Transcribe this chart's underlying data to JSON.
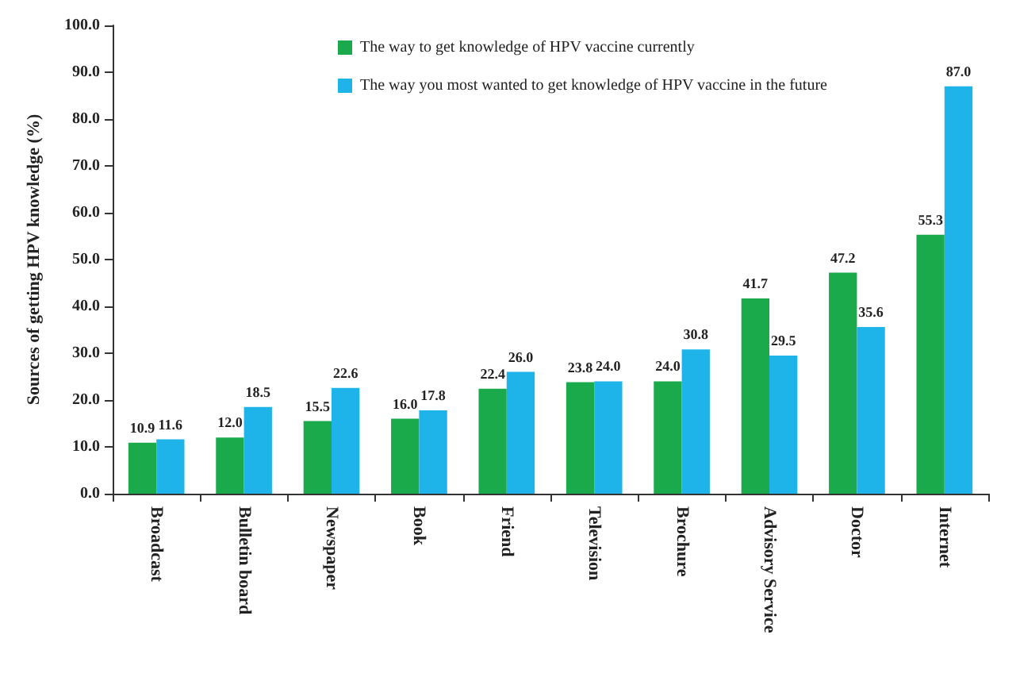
{
  "chart_data": {
    "type": "bar",
    "ylabel": "Sources of getting HPV knowledge (%)",
    "categories": [
      "Broadcast",
      "Bulletin board",
      "Newspaper",
      "Book",
      "Friend",
      "Television",
      "Brochure",
      "Advisory Service",
      "Doctor",
      "Internet"
    ],
    "series": [
      {
        "name": "The way to get knowledge of HPV vaccine currently",
        "color": "#1aaa4c",
        "values": [
          10.9,
          12.0,
          15.5,
          16.0,
          22.4,
          23.8,
          24.0,
          41.7,
          47.2,
          55.3
        ],
        "value_labels": [
          "10.9",
          "12.0",
          "15.5",
          "16.0",
          "22.4",
          "23.8",
          "24.0",
          "41.7",
          "47.2",
          "55.3"
        ]
      },
      {
        "name": "The way you most wanted to get knowledge of HPV vaccine in the future",
        "color": "#1eb4ea",
        "values": [
          11.6,
          18.5,
          22.6,
          17.8,
          26.0,
          24.0,
          30.8,
          29.5,
          35.6,
          87.0
        ],
        "value_labels": [
          "11.6",
          "18.5",
          "22.6",
          "17.8",
          "26.0",
          "24.0",
          "30.8",
          "29.5",
          "35.6",
          "87.0"
        ]
      }
    ],
    "ylim": [
      0,
      100
    ],
    "yticks": [
      {
        "value": 0,
        "label": "0.0"
      },
      {
        "value": 10,
        "label": "10.0"
      },
      {
        "value": 20,
        "label": "20.0"
      },
      {
        "value": 30,
        "label": "30.0"
      },
      {
        "value": 40,
        "label": "40.0"
      },
      {
        "value": 50,
        "label": "50.0"
      },
      {
        "value": 60,
        "label": "60.0"
      },
      {
        "value": 70,
        "label": "70.0"
      },
      {
        "value": 80,
        "label": "80.0"
      },
      {
        "value": 90,
        "label": "90.0"
      },
      {
        "value": 100,
        "label": "100.0"
      }
    ],
    "grid": false,
    "legend": "top left"
  }
}
